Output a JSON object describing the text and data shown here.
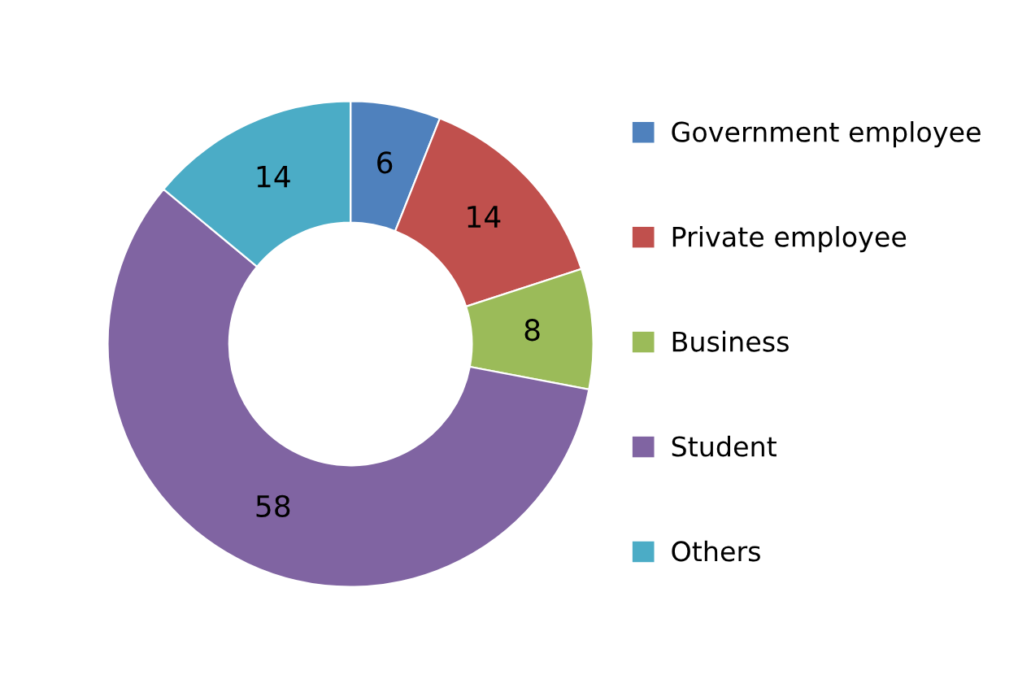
{
  "chart_data": {
    "type": "donut",
    "categories": [
      "Government employee",
      "Private employee",
      "Business",
      "Student",
      "Others"
    ],
    "values": [
      6,
      14,
      8,
      58,
      14
    ],
    "colors": [
      "#4f81bd",
      "#c0504d",
      "#9bbb59",
      "#8064a2",
      "#4bacc6"
    ],
    "data_labels": true,
    "legend": "right"
  }
}
